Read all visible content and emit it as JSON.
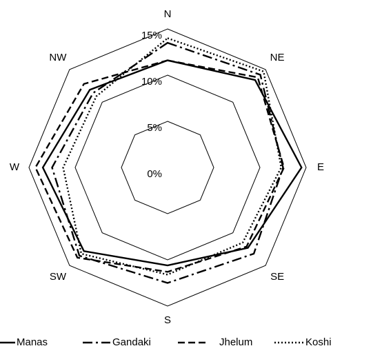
{
  "chart_data": {
    "type": "radar",
    "categories": [
      "N",
      "NE",
      "E",
      "SE",
      "S",
      "SW",
      "W",
      "NW"
    ],
    "ylim": [
      0,
      15
    ],
    "yticks": [
      {
        "value": 0,
        "label": "0%"
      },
      {
        "value": 5,
        "label": "5%"
      },
      {
        "value": 10,
        "label": "10%"
      },
      {
        "value": 15,
        "label": "15%"
      }
    ],
    "series": [
      {
        "name": "Manas",
        "color": "#000000",
        "dash": "solid",
        "values": [
          11.6,
          13.4,
          14.5,
          12.3,
          10.6,
          12.8,
          13.5,
          11.9
        ]
      },
      {
        "name": "Gandaki",
        "color": "#000000",
        "dash": "dashdot",
        "values": [
          13.5,
          14.2,
          12.5,
          13.2,
          12.5,
          13.5,
          12.5,
          11.4
        ]
      },
      {
        "name": "Jhelum",
        "color": "#000000",
        "dash": "dashed",
        "values": [
          11.6,
          13.8,
          12.6,
          12.1,
          11.3,
          13.8,
          14.3,
          12.8
        ]
      },
      {
        "name": "Koshi",
        "color": "#000000",
        "dash": "dotted",
        "values": [
          14.0,
          14.7,
          12.3,
          11.5,
          11.6,
          13.2,
          11.3,
          10.9
        ]
      }
    ]
  }
}
